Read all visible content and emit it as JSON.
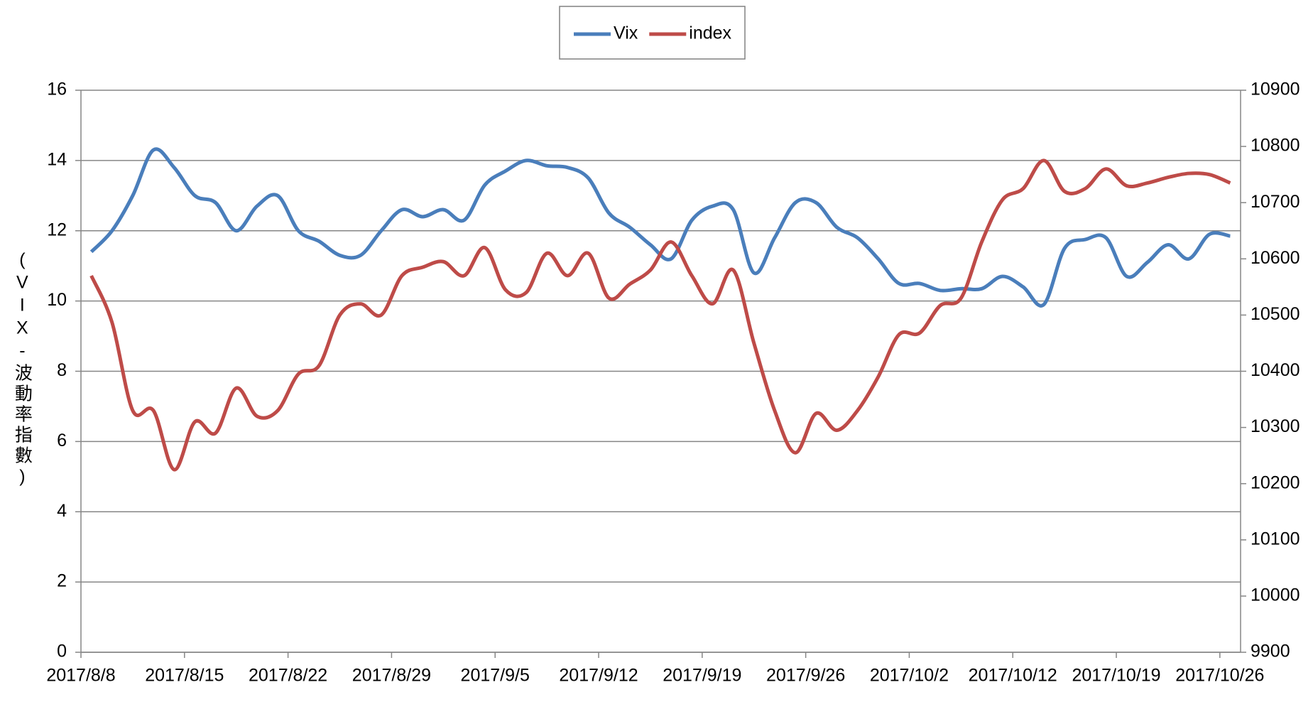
{
  "chart_data": {
    "type": "line",
    "y_label": "(VIX-波動率指數)",
    "categories": [
      "2017/8/8",
      null,
      null,
      null,
      null,
      "2017/8/15",
      null,
      null,
      null,
      null,
      "2017/8/22",
      null,
      null,
      null,
      null,
      "2017/8/29",
      null,
      null,
      null,
      null,
      "2017/9/5",
      null,
      null,
      null,
      null,
      "2017/9/12",
      null,
      null,
      null,
      null,
      "2017/9/19",
      null,
      null,
      null,
      null,
      "2017/9/26",
      null,
      null,
      null,
      null,
      "2017/10/2",
      null,
      null,
      null,
      null,
      "2017/10/12",
      null,
      null,
      null,
      null,
      "2017/10/19",
      null,
      null,
      null,
      null,
      "2017/10/26"
    ],
    "series": [
      {
        "name": "Vix",
        "color": "#4a7ebb",
        "values": [
          11.4,
          12.0,
          13.0,
          14.3,
          13.8,
          13.0,
          12.8,
          12.0,
          12.7,
          13.0,
          12.0,
          11.7,
          11.3,
          11.3,
          12.0,
          12.6,
          12.4,
          12.6,
          12.3,
          13.3,
          13.7,
          14.0,
          13.85,
          13.8,
          13.5,
          12.5,
          12.1,
          11.6,
          11.2,
          12.3,
          12.7,
          12.6,
          10.8,
          11.8,
          12.8,
          12.8,
          12.1,
          11.8,
          11.2,
          10.5,
          10.5,
          10.3,
          10.35,
          10.35,
          10.7,
          10.4,
          9.9,
          11.5,
          11.75,
          11.8,
          10.7,
          11.1,
          11.6,
          11.2,
          11.9,
          11.85
        ]
      },
      {
        "name": "index",
        "color": "#be4b48",
        "axis": "y2",
        "values": [
          10570,
          10487,
          10330,
          10330,
          10225,
          10310,
          10290,
          10370,
          10320,
          10330,
          10395,
          10410,
          10500,
          10520,
          10500,
          10570,
          10585,
          10595,
          10570,
          10620,
          10545,
          10540,
          10610,
          10570,
          10610,
          10530,
          10555,
          10580,
          10630,
          10570,
          10520,
          10580,
          10450,
          10330,
          10255,
          10325,
          10295,
          10330,
          10390,
          10465,
          10468,
          10517,
          10530,
          10630,
          10705,
          10725,
          10775,
          10720,
          10725,
          10760,
          10730,
          10735,
          10745,
          10752,
          10750,
          10735
        ]
      }
    ],
    "ylim": [
      0,
      16
    ],
    "yticks": [
      0,
      2,
      4,
      6,
      8,
      10,
      12,
      14,
      16
    ],
    "y2lim": [
      9900,
      10900
    ],
    "y2ticks": [
      9900,
      10000,
      10100,
      10200,
      10300,
      10400,
      10500,
      10600,
      10700,
      10800,
      10900
    ],
    "grid": true,
    "legend": "top"
  }
}
